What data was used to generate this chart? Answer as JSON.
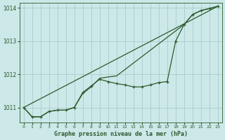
{
  "title": "Graphe pression niveau de la mer (hPa)",
  "bg_color": "#cce8e8",
  "grid_color": "#aacccc",
  "line_color": "#2d5a2d",
  "xlim": [
    -0.5,
    23.5
  ],
  "ylim": [
    1010.55,
    1014.15
  ],
  "yticks": [
    1011,
    1012,
    1013,
    1014
  ],
  "xticks": [
    0,
    1,
    2,
    3,
    4,
    5,
    6,
    7,
    8,
    9,
    10,
    11,
    12,
    13,
    14,
    15,
    16,
    17,
    18,
    19,
    20,
    21,
    22,
    23
  ],
  "jagged_data": [
    [
      0,
      1011.0
    ],
    [
      1,
      1010.72
    ],
    [
      2,
      1010.72
    ],
    [
      3,
      1010.88
    ],
    [
      4,
      1010.92
    ],
    [
      5,
      1010.92
    ],
    [
      6,
      1011.0
    ],
    [
      7,
      1011.45
    ],
    [
      8,
      1011.65
    ],
    [
      9,
      1011.85
    ],
    [
      10,
      1011.78
    ],
    [
      11,
      1011.72
    ],
    [
      12,
      1011.68
    ],
    [
      13,
      1011.62
    ],
    [
      14,
      1011.62
    ],
    [
      15,
      1011.68
    ],
    [
      16,
      1011.75
    ],
    [
      17,
      1011.78
    ],
    [
      18,
      1013.0
    ],
    [
      19,
      1013.5
    ],
    [
      20,
      1013.8
    ],
    [
      21,
      1013.92
    ],
    [
      22,
      1013.98
    ],
    [
      23,
      1014.05
    ]
  ],
  "smooth_line": [
    [
      0,
      1011.0
    ],
    [
      1,
      1010.72
    ],
    [
      2,
      1010.72
    ],
    [
      3,
      1010.88
    ],
    [
      4,
      1010.92
    ],
    [
      5,
      1010.92
    ],
    [
      6,
      1011.0
    ],
    [
      7,
      1011.42
    ],
    [
      8,
      1011.62
    ],
    [
      9,
      1011.88
    ],
    [
      10,
      1011.92
    ],
    [
      11,
      1011.95
    ],
    [
      19,
      1013.5
    ],
    [
      20,
      1013.8
    ],
    [
      21,
      1013.92
    ],
    [
      22,
      1013.98
    ],
    [
      23,
      1014.05
    ]
  ],
  "trend_line": [
    [
      0,
      1011.0
    ],
    [
      23,
      1014.05
    ]
  ]
}
